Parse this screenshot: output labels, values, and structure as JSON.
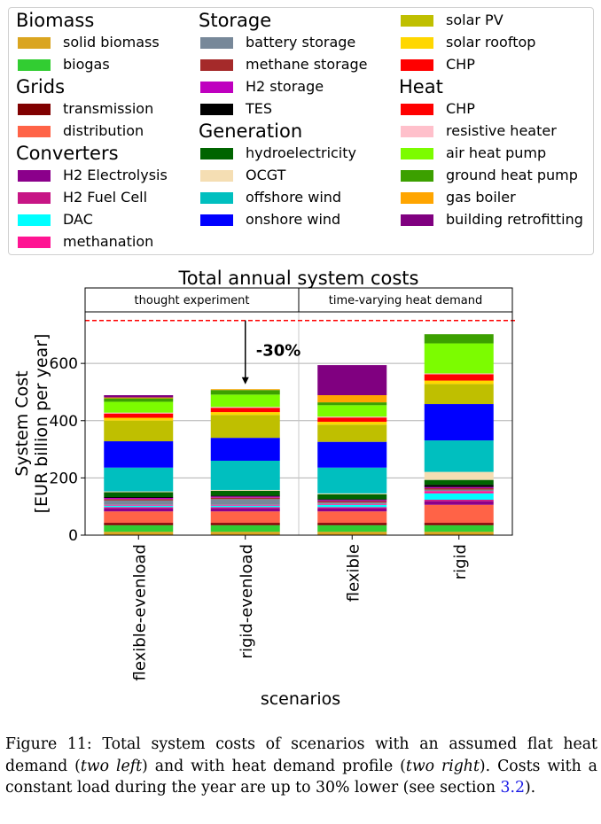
{
  "legend": {
    "columns": [
      [
        {
          "group": "Biomass",
          "items": [
            {
              "label": "solid biomass",
              "color": "#DAA520"
            },
            {
              "label": "biogas",
              "color": "#32CD32"
            }
          ]
        },
        {
          "group": "Grids",
          "items": [
            {
              "label": "transmission",
              "color": "#800000"
            },
            {
              "label": "distribution",
              "color": "#FF6347"
            }
          ]
        },
        {
          "group": "Converters",
          "items": [
            {
              "label": "H2 Electrolysis",
              "color": "#8B008B"
            },
            {
              "label": "H2 Fuel Cell",
              "color": "#C71585"
            },
            {
              "label": "DAC",
              "color": "#00FFFF"
            },
            {
              "label": "methanation",
              "color": "#FF1493"
            }
          ]
        }
      ],
      [
        {
          "group": "Storage",
          "items": [
            {
              "label": "battery storage",
              "color": "#778899"
            },
            {
              "label": "methane storage",
              "color": "#A52A2A"
            },
            {
              "label": "H2 storage",
              "color": "#BF00BF"
            },
            {
              "label": "TES",
              "color": "#000000"
            }
          ]
        },
        {
          "group": "Generation",
          "items": [
            {
              "label": "hydroelectricity",
              "color": "#006400"
            },
            {
              "label": "OCGT",
              "color": "#F5DEB3"
            },
            {
              "label": "offshore wind",
              "color": "#00BFBF"
            },
            {
              "label": "onshore wind",
              "color": "#0000FF"
            }
          ]
        }
      ],
      [
        {
          "group": "",
          "items": [
            {
              "label": "solar PV",
              "color": "#BFBF00"
            },
            {
              "label": "solar rooftop",
              "color": "#FFD700"
            },
            {
              "label": "CHP",
              "color": "#FF0000"
            }
          ]
        },
        {
          "group": "Heat",
          "items": [
            {
              "label": "CHP",
              "color": "#FF0000"
            },
            {
              "label": "resistive heater",
              "color": "#FFC0CB"
            },
            {
              "label": "air heat pump",
              "color": "#7CFC00"
            },
            {
              "label": "ground heat pump",
              "color": "#3CA000"
            },
            {
              "label": "gas boiler",
              "color": "#FFA500"
            },
            {
              "label": "building retrofitting",
              "color": "#800080"
            }
          ]
        }
      ]
    ]
  },
  "chart_data": {
    "type": "bar",
    "stacked": true,
    "title": "Total annual system costs",
    "xlabel": "scenarios",
    "ylabel_lines": [
      "System Cost",
      "[EUR billion per year]"
    ],
    "ylim": [
      0,
      780
    ],
    "yticks": [
      0,
      200,
      400,
      600
    ],
    "grid": true,
    "categories": [
      "flexible-evenload",
      "rigid-evenload",
      "flexible",
      "rigid"
    ],
    "groups": [
      {
        "label": "thought experiment",
        "categories": [
          0,
          1
        ]
      },
      {
        "label": "time-varying heat demand",
        "categories": [
          2,
          3
        ]
      }
    ],
    "reference_line": {
      "value": 750,
      "color": "#FF0000",
      "style": "dashed"
    },
    "annotation": {
      "text": "-30%",
      "arrow_from": 750,
      "arrow_to": 527,
      "category": 1
    },
    "series": [
      {
        "name": "solid biomass",
        "color": "#DAA520",
        "values": [
          12,
          12,
          12,
          12
        ]
      },
      {
        "name": "biogas",
        "color": "#32CD32",
        "values": [
          23,
          23,
          23,
          23
        ]
      },
      {
        "name": "transmission",
        "color": "#800000",
        "values": [
          8,
          8,
          8,
          8
        ]
      },
      {
        "name": "distribution",
        "color": "#FF6347",
        "values": [
          40,
          40,
          40,
          63
        ]
      },
      {
        "name": "H2 Electrolysis",
        "color": "#8B008B",
        "values": [
          10,
          10,
          10,
          12
        ]
      },
      {
        "name": "H2 Fuel Cell",
        "color": "#C71585",
        "values": [
          5,
          5,
          5,
          6
        ]
      },
      {
        "name": "DAC",
        "color": "#00FFFF",
        "values": [
          5,
          5,
          8,
          22
        ]
      },
      {
        "name": "methanation",
        "color": "#FF1493",
        "values": [
          3,
          3,
          3,
          8
        ]
      },
      {
        "name": "battery storage",
        "color": "#778899",
        "values": [
          15,
          20,
          5,
          5
        ]
      },
      {
        "name": "methane storage",
        "color": "#A52A2A",
        "values": [
          5,
          5,
          5,
          5
        ]
      },
      {
        "name": "H2 storage",
        "color": "#BF00BF",
        "values": [
          4,
          4,
          4,
          4
        ]
      },
      {
        "name": "TES",
        "color": "#000000",
        "values": [
          3,
          3,
          3,
          8
        ]
      },
      {
        "name": "hydroelectricity",
        "color": "#006400",
        "values": [
          17,
          17,
          17,
          17
        ]
      },
      {
        "name": "OCGT",
        "color": "#F5DEB3",
        "values": [
          3,
          3,
          3,
          28
        ]
      },
      {
        "name": "offshore wind",
        "color": "#00BFBF",
        "values": [
          83,
          102,
          90,
          110
        ]
      },
      {
        "name": "onshore wind",
        "color": "#0000FF",
        "values": [
          92,
          80,
          90,
          127
        ]
      },
      {
        "name": "solar PV",
        "color": "#BFBF00",
        "values": [
          72,
          80,
          60,
          70
        ]
      },
      {
        "name": "solar rooftop",
        "color": "#FFD700",
        "values": [
          10,
          10,
          10,
          12
        ]
      },
      {
        "name": "CHP (electricity)",
        "color": "#FF0000",
        "values": [
          15,
          15,
          15,
          22
        ]
      },
      {
        "name": "resistive heater",
        "color": "#FFC0CB",
        "values": [
          3,
          3,
          3,
          3
        ]
      },
      {
        "name": "air heat pump",
        "color": "#7CFC00",
        "values": [
          38,
          43,
          40,
          105
        ]
      },
      {
        "name": "ground heat pump",
        "color": "#3CA000",
        "values": [
          12,
          16,
          10,
          32
        ]
      },
      {
        "name": "gas boiler",
        "color": "#FFA500",
        "values": [
          3,
          3,
          25,
          0
        ]
      },
      {
        "name": "building retrofitting",
        "color": "#800080",
        "values": [
          8,
          0,
          105,
          0
        ]
      }
    ]
  },
  "caption": {
    "text_before": "Figure 11: Total system costs of scenarios with an assumed flat heat demand (",
    "em1": "two left",
    "text_mid": ") and with heat demand profile (",
    "em2": "two right",
    "text_after": "). Costs with a constant load during the year are up to 30% lower (see section ",
    "ref": "3.2",
    "text_end": ")."
  }
}
